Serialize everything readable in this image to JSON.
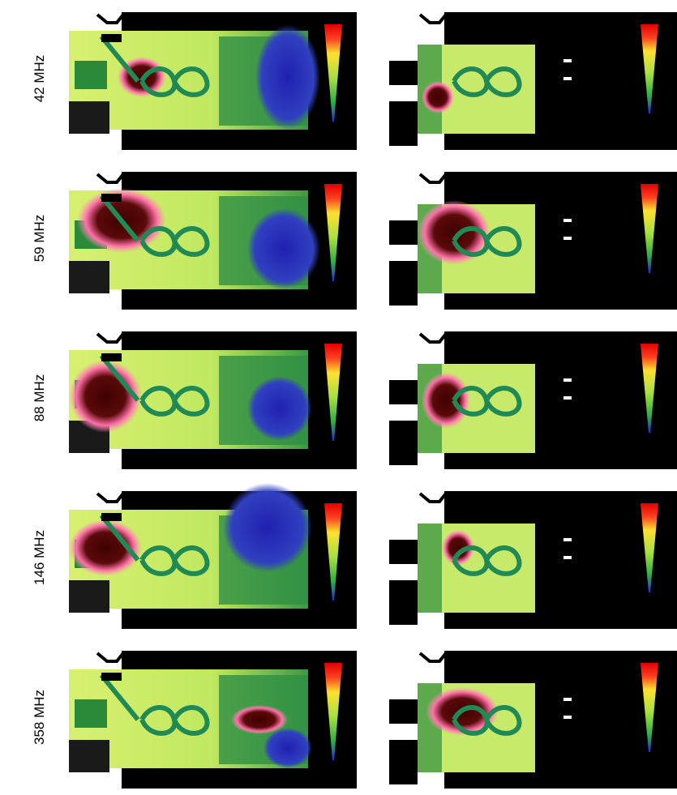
{
  "frequency_labels": [
    "42 MHz",
    "59 MHz",
    "88 MHz",
    "146 MHz",
    "358 MHz"
  ]
}
